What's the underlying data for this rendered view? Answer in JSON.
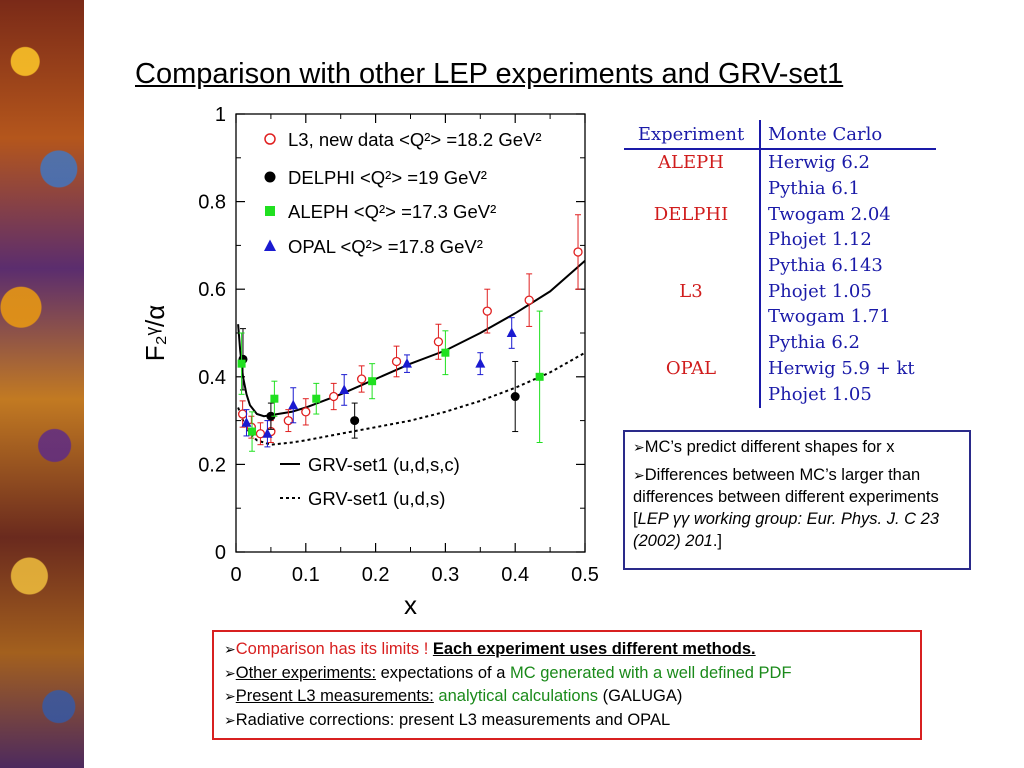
{
  "title": "Comparison with other LEP experiments and GRV-set1",
  "chart_data": {
    "type": "scatter",
    "xlabel": "x",
    "ylabel": "F₂ᵞ/α",
    "xlim": [
      0,
      0.5
    ],
    "ylim": [
      0,
      1
    ],
    "xticks": [
      "0",
      "0.1",
      "0.2",
      "0.3",
      "0.4",
      "0.5"
    ],
    "yticks": [
      "0",
      "0.2",
      "0.4",
      "0.6",
      "0.8",
      "1"
    ],
    "series": [
      {
        "name": "L3, new data <Q²> =18.2 GeV²",
        "marker": "open-circle",
        "color": "#e02020",
        "points": [
          [
            0.0095,
            0.315,
            0.03
          ],
          [
            0.022,
            0.285,
            0.025
          ],
          [
            0.035,
            0.27,
            0.025
          ],
          [
            0.05,
            0.275,
            0.025
          ],
          [
            0.075,
            0.3,
            0.025
          ],
          [
            0.1,
            0.32,
            0.03
          ],
          [
            0.14,
            0.355,
            0.03
          ],
          [
            0.18,
            0.395,
            0.03
          ],
          [
            0.23,
            0.435,
            0.035
          ],
          [
            0.29,
            0.48,
            0.04
          ],
          [
            0.36,
            0.55,
            0.05
          ],
          [
            0.42,
            0.575,
            0.06
          ],
          [
            0.49,
            0.685,
            0.085
          ]
        ]
      },
      {
        "name": "DELPHI <Q²> =19 GeV²",
        "marker": "filled-circle",
        "color": "#000000",
        "points": [
          [
            0.01,
            0.44,
            0.07
          ],
          [
            0.05,
            0.31,
            0.03
          ],
          [
            0.17,
            0.3,
            0.04
          ],
          [
            0.4,
            0.355,
            0.08
          ]
        ]
      },
      {
        "name": "ALEPH <Q²> =17.3 GeV²",
        "marker": "square",
        "color": "#20e020",
        "points": [
          [
            0.008,
            0.43,
            0.07
          ],
          [
            0.023,
            0.275,
            0.045
          ],
          [
            0.055,
            0.35,
            0.04
          ],
          [
            0.115,
            0.35,
            0.035
          ],
          [
            0.195,
            0.39,
            0.04
          ],
          [
            0.3,
            0.455,
            0.05
          ],
          [
            0.435,
            0.4,
            0.15
          ]
        ]
      },
      {
        "name": "OPAL <Q²> =17.8 GeV²",
        "marker": "triangle",
        "color": "#1a1ad0",
        "points": [
          [
            0.015,
            0.295,
            0.03
          ],
          [
            0.045,
            0.27,
            0.03
          ],
          [
            0.082,
            0.335,
            0.04
          ],
          [
            0.155,
            0.37,
            0.035
          ],
          [
            0.245,
            0.43,
            0.02
          ],
          [
            0.35,
            0.43,
            0.025
          ],
          [
            0.395,
            0.5,
            0.035
          ]
        ]
      }
    ],
    "curves": [
      {
        "name": "GRV-set1 (u,d,s,c)",
        "style": "solid",
        "points": [
          [
            0.003,
            0.52
          ],
          [
            0.006,
            0.46
          ],
          [
            0.01,
            0.4
          ],
          [
            0.015,
            0.36
          ],
          [
            0.02,
            0.335
          ],
          [
            0.03,
            0.315
          ],
          [
            0.04,
            0.31
          ],
          [
            0.06,
            0.315
          ],
          [
            0.08,
            0.32
          ],
          [
            0.1,
            0.33
          ],
          [
            0.15,
            0.36
          ],
          [
            0.2,
            0.395
          ],
          [
            0.25,
            0.43
          ],
          [
            0.3,
            0.46
          ],
          [
            0.35,
            0.5
          ],
          [
            0.4,
            0.545
          ],
          [
            0.45,
            0.595
          ],
          [
            0.5,
            0.665
          ]
        ]
      },
      {
        "name": "GRV-set1 (u,d,s)",
        "style": "dotted",
        "points": [
          [
            0.003,
            0.33
          ],
          [
            0.01,
            0.3
          ],
          [
            0.02,
            0.27
          ],
          [
            0.03,
            0.255
          ],
          [
            0.05,
            0.245
          ],
          [
            0.08,
            0.25
          ],
          [
            0.1,
            0.255
          ],
          [
            0.15,
            0.27
          ],
          [
            0.2,
            0.285
          ],
          [
            0.25,
            0.3
          ],
          [
            0.3,
            0.32
          ],
          [
            0.35,
            0.345
          ],
          [
            0.4,
            0.375
          ],
          [
            0.45,
            0.41
          ],
          [
            0.5,
            0.455
          ]
        ]
      }
    ]
  },
  "mc_table": {
    "headers": [
      "Experiment",
      "Monte Carlo"
    ],
    "rows": [
      [
        "ALEPH",
        "Herwig 6.2"
      ],
      [
        "",
        "Pythia 6.1"
      ],
      [
        "DELPHI",
        "Twogam 2.04"
      ],
      [
        "",
        "Phojet 1.12"
      ],
      [
        "",
        "Pythia 6.143"
      ],
      [
        "L3",
        "Phojet 1.05"
      ],
      [
        "",
        "Twogam 1.71"
      ],
      [
        "",
        "Pythia 6.2"
      ],
      [
        "OPAL",
        "Herwig 5.9 + kt"
      ],
      [
        "",
        "Phojet 1.05"
      ]
    ]
  },
  "notes": {
    "b1": "MC’s predict different shapes for x",
    "b2_text": "Differences between MC’s larger than differences between different experiments [",
    "b2_ref": "LEP  γγ working group: Eur. Phys. J. C 23 (2002) 201",
    "b2_end": ".]"
  },
  "summary": {
    "l1_red": "Comparison has its limits ! ",
    "l1_bold": "Each experiment uses different methods.",
    "l2_u": "Other experiments:",
    "l2_text": " expectations of a ",
    "l2_green": "MC generated with a well defined PDF",
    "l3_u": "Present L3 measurements:",
    "l3_green": " analytical calculations",
    "l3_text": " (GALUGA)",
    "l4": "Radiative corrections: present L3 measurements and OPAL"
  }
}
